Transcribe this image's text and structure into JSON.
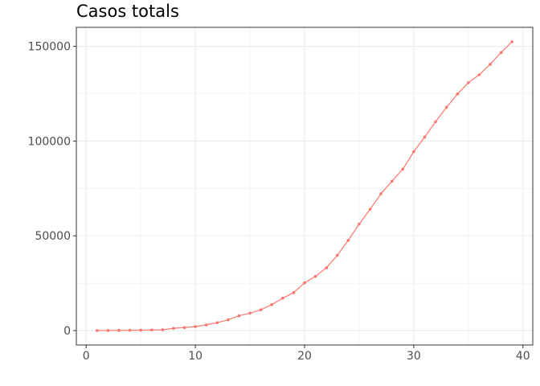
{
  "chart_data": {
    "type": "line",
    "title": "Casos totals",
    "xlabel": "",
    "ylabel": "",
    "xlim": [
      -0.9,
      40.9
    ],
    "ylim": [
      -7600,
      160000
    ],
    "x_ticks": [
      0,
      10,
      20,
      30,
      40
    ],
    "y_ticks": [
      0,
      50000,
      100000,
      150000
    ],
    "x_tick_labels": [
      "0",
      "10",
      "20",
      "30",
      "40"
    ],
    "y_tick_labels": [
      "0",
      "50000",
      "100000",
      "150000"
    ],
    "grid": true,
    "legend": "none",
    "series": [
      {
        "color": "#F8766D",
        "x": [
          1,
          2,
          3,
          4,
          5,
          6,
          7,
          8,
          9,
          10,
          11,
          12,
          13,
          14,
          15,
          16,
          17,
          18,
          19,
          20,
          21,
          22,
          23,
          24,
          25,
          26,
          27,
          28,
          29,
          30,
          31,
          32,
          33,
          34,
          35,
          36,
          37,
          38,
          39
        ],
        "values": [
          20,
          60,
          100,
          150,
          220,
          300,
          430,
          1200,
          1600,
          2100,
          3000,
          4200,
          5700,
          7800,
          9200,
          11000,
          13700,
          17100,
          20000,
          25200,
          28600,
          33100,
          39700,
          47600,
          56200,
          64000,
          72200,
          78800,
          85200,
          94400,
          102100,
          110200,
          117800,
          124800,
          130800,
          135000,
          140500,
          146700,
          152400
        ]
      }
    ]
  }
}
